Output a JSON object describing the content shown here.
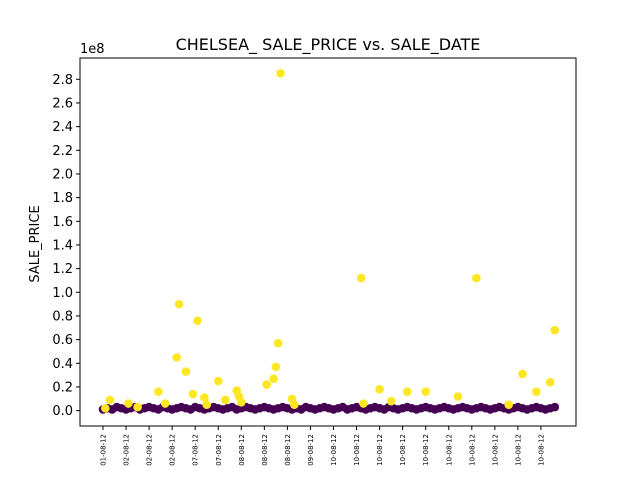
{
  "chart_data": {
    "type": "scatter",
    "title": "CHELSEA_ SALE_PRICE vs. SALE_DATE",
    "xlabel": "",
    "ylabel": "SALE_PRICE",
    "y_offset_text": "1e8",
    "ylim": [
      -0.13,
      2.98
    ],
    "yticks": [
      "0.0",
      "0.2",
      "0.4",
      "0.6",
      "0.8",
      "1.0",
      "1.2",
      "1.4",
      "1.6",
      "1.8",
      "2.0",
      "2.2",
      "2.4",
      "2.6",
      "2.8"
    ],
    "xtick_labels": [
      "01-08-12",
      "02-08-12",
      "02-08-12",
      "02-08-12",
      "07-08-12",
      "07-08-12",
      "08-08-12",
      "08-08-12",
      "08-08-12",
      "09-08-12",
      "10-08-12",
      "10-08-12",
      "10-08-12",
      "10-08-12",
      "10-08-12",
      "10-08-12",
      "10-08-12",
      "10-08-12",
      "10-08-12",
      "10-08-12"
    ],
    "grid": false,
    "colors": {
      "high": "#fde725",
      "low": "#440154"
    },
    "series": [
      {
        "color_group": "high",
        "x": [
          0.1,
          0.3,
          1.1,
          1.5,
          2.4,
          2.7,
          3.2,
          3.3,
          3.6,
          3.9,
          4.1,
          4.4,
          4.5,
          5.0,
          5.3,
          5.8,
          5.9,
          6.0,
          7.1,
          7.4,
          7.5,
          7.6,
          7.7,
          8.2,
          8.3,
          11.2,
          11.3,
          12.0,
          12.5,
          13.2,
          14.0,
          15.4,
          16.2,
          17.6,
          18.2,
          18.8,
          19.4,
          19.6
        ],
        "y": [
          0.02,
          0.09,
          0.06,
          0.03,
          0.16,
          0.06,
          0.45,
          0.9,
          0.33,
          0.14,
          0.76,
          0.11,
          0.05,
          0.25,
          0.09,
          0.17,
          0.12,
          0.07,
          0.22,
          0.27,
          0.37,
          0.57,
          2.85,
          0.1,
          0.05,
          1.12,
          0.06,
          0.18,
          0.08,
          0.16,
          0.16,
          0.12,
          1.12,
          0.05,
          0.31,
          0.16,
          0.24,
          0.68
        ]
      },
      {
        "color_group": "low",
        "x": [
          0.0,
          0.2,
          0.4,
          0.6,
          0.8,
          1.0,
          1.2,
          1.4,
          1.6,
          1.8,
          2.0,
          2.2,
          2.4,
          2.6,
          2.8,
          3.0,
          3.2,
          3.4,
          3.6,
          3.8,
          4.0,
          4.2,
          4.4,
          4.6,
          4.8,
          5.0,
          5.2,
          5.4,
          5.6,
          5.8,
          6.0,
          6.2,
          6.4,
          6.6,
          6.8,
          7.0,
          7.2,
          7.4,
          7.6,
          7.8,
          8.0,
          8.2,
          8.4,
          8.6,
          8.8,
          9.0,
          9.2,
          9.4,
          9.6,
          9.8,
          10.0,
          10.2,
          10.4,
          10.6,
          10.8,
          11.0,
          11.2,
          11.4,
          11.6,
          11.8,
          12.0,
          12.2,
          12.4,
          12.6,
          12.8,
          13.0,
          13.2,
          13.4,
          13.6,
          13.8,
          14.0,
          14.2,
          14.4,
          14.6,
          14.8,
          15.0,
          15.2,
          15.4,
          15.6,
          15.8,
          16.0,
          16.2,
          16.4,
          16.6,
          16.8,
          17.0,
          17.2,
          17.4,
          17.6,
          17.8,
          18.0,
          18.2,
          18.4,
          18.6,
          18.8,
          19.0,
          19.2,
          19.4,
          19.6
        ],
        "y": [
          0.01,
          0.02,
          0.01,
          0.03,
          0.02,
          0.01,
          0.02,
          0.03,
          0.01,
          0.02,
          0.03,
          0.02,
          0.01,
          0.03,
          0.02,
          0.01,
          0.02,
          0.03,
          0.02,
          0.01,
          0.03,
          0.02,
          0.01,
          0.02,
          0.03,
          0.02,
          0.01,
          0.02,
          0.03,
          0.01,
          0.02,
          0.03,
          0.02,
          0.01,
          0.02,
          0.03,
          0.02,
          0.01,
          0.02,
          0.03,
          0.02,
          0.01,
          0.02,
          0.01,
          0.03,
          0.02,
          0.01,
          0.02,
          0.03,
          0.02,
          0.01,
          0.02,
          0.03,
          0.01,
          0.02,
          0.03,
          0.02,
          0.01,
          0.02,
          0.03,
          0.02,
          0.01,
          0.03,
          0.02,
          0.01,
          0.02,
          0.03,
          0.02,
          0.01,
          0.02,
          0.03,
          0.02,
          0.01,
          0.02,
          0.03,
          0.02,
          0.01,
          0.02,
          0.03,
          0.02,
          0.01,
          0.02,
          0.03,
          0.02,
          0.01,
          0.02,
          0.03,
          0.02,
          0.01,
          0.02,
          0.03,
          0.02,
          0.01,
          0.02,
          0.03,
          0.02,
          0.01,
          0.02,
          0.03
        ]
      }
    ]
  }
}
